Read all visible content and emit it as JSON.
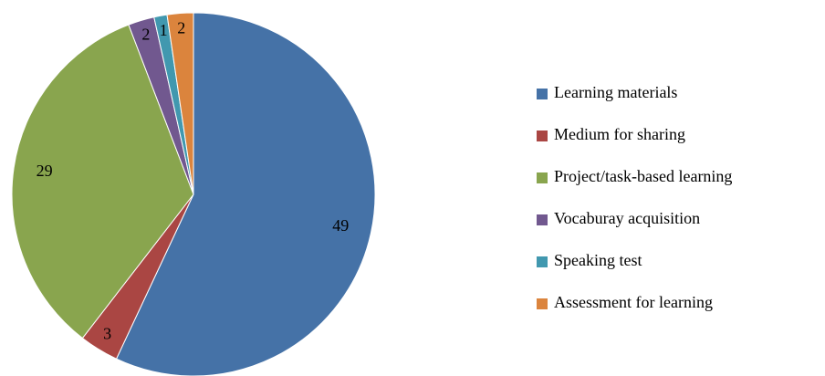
{
  "chart_data": {
    "type": "pie",
    "categories": [
      "Learning materials",
      "Medium for sharing",
      "Project/task-based learning",
      "Vocaburay acquisition",
      "Speaking test",
      "Assessment for learning"
    ],
    "values": [
      49,
      3,
      29,
      2,
      1,
      2
    ],
    "colors": [
      "#4572A7",
      "#AA4643",
      "#89A54E",
      "#71588F",
      "#4198AF",
      "#DB843D"
    ],
    "legend": "right"
  }
}
